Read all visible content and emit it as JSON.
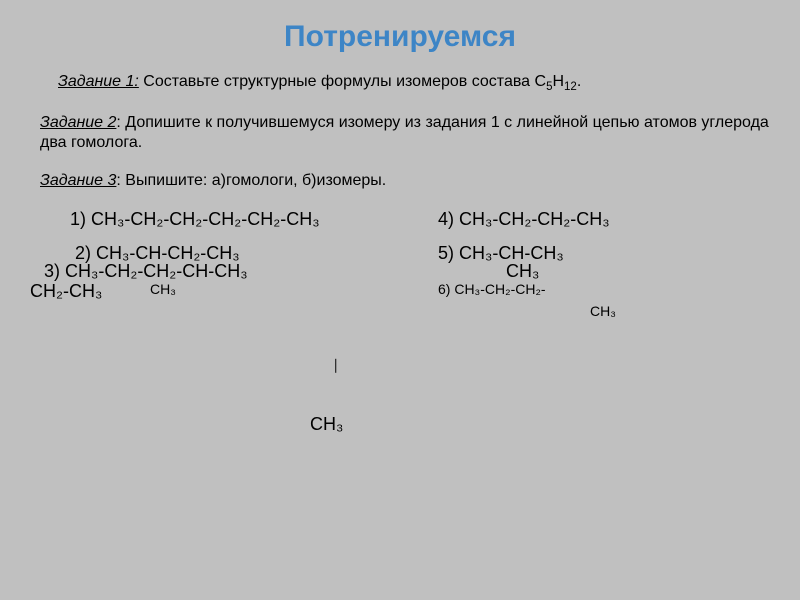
{
  "title": "Потренируемся",
  "task1": {
    "label": "Задание 1:",
    "text": " Составьте структурные формулы изомеров состава С",
    "sub1": "5",
    "mid": "Н",
    "sub2": "12",
    "end": "."
  },
  "task2": {
    "label": "Задание 2",
    "text": ": Допишите к получившемуся изомеру из задания 1 с линейной цепью атомов углерода два гомолога."
  },
  "task3": {
    "label": "Задание 3",
    "text": ": Выпишите: а)гомологи, б)изомеры."
  },
  "formulas": {
    "f1": "1) CH₃-CH₂-CH₂-CH₂-CH₂-CH₃",
    "f2": "2) CH₃-CH-CH₂-CH₃",
    "f3": "3) CH₃-CH₂-CH₂-CH-CH₃",
    "f3sub": "CH₃",
    "f4": "4) CH₃-CH₂-CH₂-CH₃",
    "f5": "5) CH₃-CH-CH₃",
    "f5sub": "CH₃",
    "f6": "6) CH₃-CH₂-CH₂-",
    "ch3right": "CH₃",
    "ch2ch3left": "CH₂-CH₃",
    "square": "⎸",
    "ch3bottom": "CH₃"
  },
  "colors": {
    "background": "#c0c0c0",
    "title": "#3d85c6",
    "text": "#000000"
  }
}
